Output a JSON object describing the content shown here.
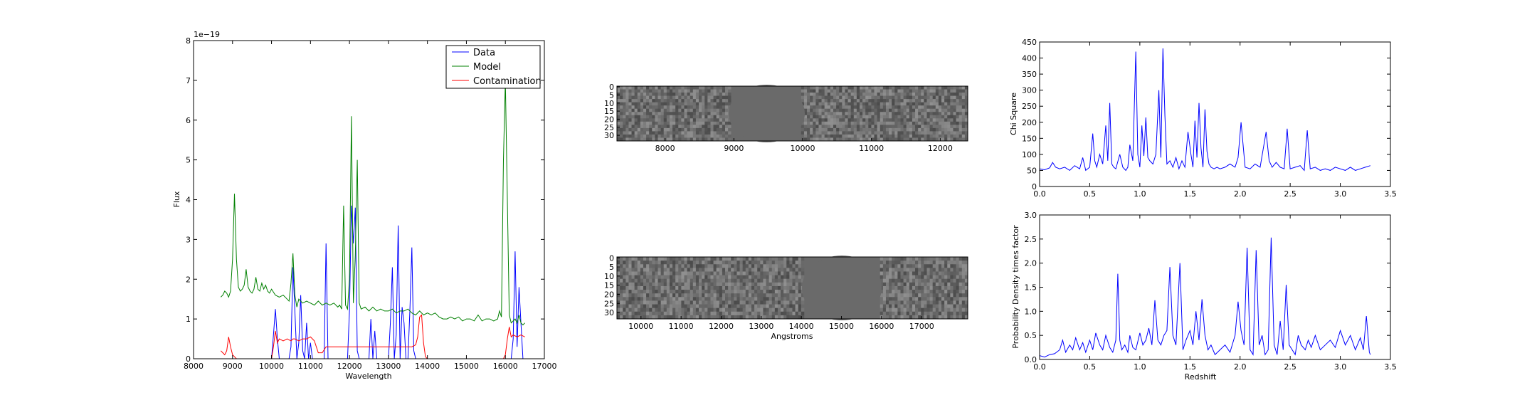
{
  "colors": {
    "data": "#0000ff",
    "model": "#008000",
    "contamination": "#ff0000",
    "image_gap": "#6a6a6a"
  },
  "chart_data": [
    {
      "type": "line",
      "xlabel": "Wavelength",
      "ylabel": "Flux",
      "y_offset_label": "1e−19",
      "xlim": [
        8000,
        17000
      ],
      "ylim": [
        0,
        8
      ],
      "xticks": [
        8000,
        9000,
        10000,
        11000,
        12000,
        13000,
        14000,
        15000,
        16000,
        17000
      ],
      "yticks": [
        0,
        1,
        2,
        3,
        4,
        5,
        6,
        7,
        8
      ],
      "legend_position": "top-right",
      "series": [
        {
          "name": "Data",
          "color": "#0000ff",
          "x": [
            8700,
            10000,
            10050,
            10100,
            10150,
            10200,
            10450,
            10500,
            10550,
            10600,
            10650,
            10700,
            10750,
            10800,
            10850,
            10900,
            10950,
            11000,
            11050,
            11350,
            11400,
            11450,
            11950,
            12000,
            12050,
            12100,
            12150,
            12200,
            12250,
            12500,
            12550,
            12600,
            12650,
            12700,
            12750,
            13000,
            13050,
            13100,
            13150,
            13200,
            13250,
            13300,
            13350,
            13400,
            13450,
            13500,
            13550,
            13600,
            13650,
            13700,
            13750,
            13800,
            13850,
            16150,
            16200,
            16250,
            16300,
            16350,
            16400,
            16450,
            16500
          ],
          "y": [
            0,
            0,
            0.6,
            1.25,
            0.5,
            0,
            0,
            0.3,
            2.3,
            1.2,
            0,
            0.4,
            1.6,
            0.2,
            0,
            0.9,
            0,
            0.4,
            0,
            0,
            2.9,
            0,
            0,
            1.2,
            3.85,
            2.9,
            3.8,
            0.2,
            0,
            0,
            1.0,
            0,
            0.7,
            0,
            0,
            0,
            0.9,
            2.3,
            0,
            0.6,
            3.35,
            0,
            1.3,
            0.9,
            0,
            0,
            1.2,
            2.8,
            0.2,
            0,
            0,
            0,
            0,
            0,
            0.5,
            2.7,
            0.3,
            1.8,
            0.9,
            0,
            0
          ]
        },
        {
          "name": "Model",
          "color": "#008000",
          "x": [
            8700,
            8750,
            8800,
            8850,
            8900,
            8950,
            9000,
            9050,
            9100,
            9150,
            9200,
            9250,
            9300,
            9350,
            9400,
            9450,
            9500,
            9550,
            9600,
            9650,
            9700,
            9750,
            9800,
            9850,
            9900,
            9950,
            10000,
            10100,
            10200,
            10300,
            10400,
            10450,
            10500,
            10550,
            10600,
            10650,
            10700,
            10800,
            10900,
            11000,
            11100,
            11200,
            11300,
            11400,
            11500,
            11600,
            11700,
            11750,
            11800,
            11850,
            11900,
            11950,
            12000,
            12050,
            12100,
            12150,
            12200,
            12250,
            12300,
            12400,
            12500,
            12600,
            12700,
            12800,
            12900,
            13000,
            13100,
            13200,
            13300,
            13400,
            13500,
            13600,
            13700,
            13800,
            13900,
            14000,
            14100,
            14200,
            14300,
            14400,
            14500,
            14600,
            14700,
            14800,
            14900,
            15000,
            15100,
            15200,
            15300,
            15400,
            15500,
            15600,
            15700,
            15800,
            15850,
            15900,
            15950,
            16000,
            16050,
            16100,
            16150,
            16200,
            16250,
            16300,
            16350,
            16400,
            16450,
            16500
          ],
          "y": [
            1.55,
            1.6,
            1.7,
            1.65,
            1.55,
            1.7,
            2.5,
            4.15,
            2.5,
            1.8,
            1.7,
            1.75,
            1.85,
            2.25,
            1.8,
            1.7,
            1.65,
            1.75,
            2.05,
            1.75,
            1.7,
            1.9,
            1.75,
            1.85,
            1.7,
            1.65,
            1.75,
            1.6,
            1.55,
            1.6,
            1.5,
            1.45,
            1.9,
            2.65,
            1.6,
            1.3,
            1.5,
            1.4,
            1.45,
            1.4,
            1.35,
            1.45,
            1.35,
            1.4,
            1.35,
            1.4,
            1.3,
            1.35,
            1.25,
            3.85,
            1.35,
            1.25,
            2.0,
            6.1,
            1.4,
            2.6,
            5.0,
            1.4,
            1.25,
            1.3,
            1.2,
            1.3,
            1.2,
            1.25,
            1.2,
            1.2,
            1.25,
            1.15,
            1.2,
            1.2,
            1.25,
            1.15,
            1.1,
            1.2,
            1.1,
            1.15,
            1.1,
            1.15,
            1.05,
            1.0,
            1.0,
            1.05,
            1.0,
            1.05,
            0.95,
            1.0,
            1.0,
            0.95,
            1.1,
            0.95,
            1.0,
            1.0,
            0.95,
            1.0,
            1.2,
            1.05,
            5.0,
            7.0,
            4.0,
            1.1,
            0.9,
            0.95,
            1.0,
            0.9,
            1.1,
            0.9,
            0.85,
            0.9
          ]
        },
        {
          "name": "Contamination",
          "color": "#ff0000",
          "x": [
            8700,
            8750,
            8800,
            8850,
            8900,
            8950,
            9000,
            9050,
            9100,
            9500,
            9950,
            10000,
            10050,
            10100,
            10150,
            10200,
            10300,
            10400,
            10500,
            10550,
            10600,
            10700,
            10800,
            10900,
            11000,
            11100,
            11200,
            11300,
            11400,
            11500,
            11600,
            11700,
            11800,
            11900,
            12000,
            12100,
            12200,
            12300,
            12400,
            12500,
            12600,
            12700,
            12800,
            12900,
            13000,
            13100,
            13200,
            13300,
            13400,
            13500,
            13600,
            13700,
            13750,
            13800,
            13850,
            13900,
            13950,
            14000,
            14100,
            14500,
            15000,
            15500,
            15900,
            15950,
            16000,
            16050,
            16100,
            16150,
            16200,
            16300,
            16400,
            16500
          ],
          "y": [
            0.2,
            0.15,
            0.1,
            0.2,
            0.55,
            0.3,
            0.1,
            0.05,
            0,
            0,
            0,
            0,
            0.3,
            0.7,
            0.4,
            0.5,
            0.45,
            0.5,
            0.45,
            0.5,
            0.5,
            0.45,
            0.5,
            0.5,
            0.55,
            0.45,
            0.15,
            0.15,
            0.3,
            0.3,
            0.3,
            0.3,
            0.3,
            0.3,
            0.3,
            0.3,
            0.3,
            0.3,
            0.3,
            0.3,
            0.3,
            0.3,
            0.3,
            0.3,
            0.3,
            0.3,
            0.3,
            0.3,
            0.3,
            0.3,
            0.3,
            0.35,
            0.55,
            1.05,
            1.1,
            0.4,
            0.05,
            0,
            0,
            0,
            0,
            0,
            0,
            0,
            0.1,
            0.5,
            0.8,
            0.55,
            0.6,
            0.55,
            0.6,
            0.55
          ]
        }
      ]
    },
    {
      "type": "heatmap",
      "xlim": [
        7300,
        12400
      ],
      "xticks": [
        8000,
        9000,
        10000,
        11000,
        12000
      ],
      "yticks": [
        0,
        5,
        10,
        15,
        20,
        25,
        30
      ],
      "ylim": [
        0,
        34
      ],
      "xlabel": ""
    },
    {
      "type": "heatmap",
      "xlim": [
        9400,
        18150
      ],
      "xticks": [
        10000,
        11000,
        12000,
        13000,
        14000,
        15000,
        16000,
        17000
      ],
      "yticks": [
        0,
        5,
        10,
        15,
        20,
        25,
        30
      ],
      "ylim": [
        0,
        34
      ],
      "xlabel": "Angstroms"
    },
    {
      "type": "line",
      "xlabel": "",
      "ylabel": "Chi Square",
      "xlim": [
        0.0,
        3.5
      ],
      "ylim": [
        0,
        450
      ],
      "xticks": [
        0.0,
        0.5,
        1.0,
        1.5,
        2.0,
        2.5,
        3.0,
        3.5
      ],
      "xtick_labels": [
        "0.0",
        "0.5",
        "1.0",
        "1.5",
        "2.0",
        "2.5",
        "3.0",
        "3.5"
      ],
      "yticks": [
        0,
        50,
        100,
        150,
        200,
        250,
        300,
        350,
        400,
        450
      ],
      "series": [
        {
          "color": "#0000ff",
          "x": [
            0.0,
            0.05,
            0.1,
            0.13,
            0.16,
            0.2,
            0.25,
            0.3,
            0.35,
            0.4,
            0.43,
            0.46,
            0.5,
            0.53,
            0.55,
            0.57,
            0.6,
            0.63,
            0.66,
            0.68,
            0.7,
            0.72,
            0.74,
            0.76,
            0.8,
            0.83,
            0.86,
            0.88,
            0.9,
            0.93,
            0.96,
            0.98,
            1.0,
            1.02,
            1.04,
            1.06,
            1.08,
            1.1,
            1.13,
            1.16,
            1.19,
            1.21,
            1.23,
            1.25,
            1.27,
            1.3,
            1.33,
            1.36,
            1.39,
            1.42,
            1.45,
            1.48,
            1.51,
            1.53,
            1.55,
            1.57,
            1.59,
            1.61,
            1.63,
            1.65,
            1.67,
            1.69,
            1.71,
            1.74,
            1.77,
            1.8,
            1.85,
            1.9,
            1.95,
            1.98,
            2.01,
            2.05,
            2.1,
            2.15,
            2.2,
            2.23,
            2.26,
            2.29,
            2.32,
            2.36,
            2.4,
            2.44,
            2.47,
            2.5,
            2.55,
            2.6,
            2.64,
            2.67,
            2.7,
            2.75,
            2.8,
            2.85,
            2.9,
            2.95,
            3.0,
            3.05,
            3.1,
            3.15,
            3.2,
            3.25,
            3.3
          ],
          "y": [
            55,
            52,
            58,
            75,
            60,
            55,
            60,
            50,
            65,
            55,
            90,
            50,
            60,
            165,
            80,
            60,
            100,
            70,
            190,
            80,
            260,
            70,
            60,
            55,
            100,
            60,
            50,
            60,
            130,
            80,
            420,
            100,
            60,
            190,
            95,
            215,
            90,
            80,
            70,
            100,
            300,
            90,
            430,
            220,
            70,
            80,
            60,
            90,
            55,
            80,
            60,
            170,
            100,
            60,
            205,
            90,
            260,
            120,
            60,
            240,
            110,
            70,
            60,
            55,
            60,
            55,
            60,
            70,
            60,
            90,
            200,
            60,
            55,
            70,
            60,
            115,
            170,
            80,
            60,
            75,
            60,
            55,
            180,
            55,
            60,
            65,
            50,
            175,
            55,
            60,
            50,
            55,
            50,
            60,
            55,
            50,
            60,
            50,
            55,
            60,
            65
          ]
        }
      ]
    },
    {
      "type": "line",
      "xlabel": "Redshift",
      "ylabel": "Probability Density times factor",
      "xlim": [
        0.0,
        3.5
      ],
      "ylim": [
        0,
        3.0
      ],
      "xticks": [
        0.0,
        0.5,
        1.0,
        1.5,
        2.0,
        2.5,
        3.0,
        3.5
      ],
      "xtick_labels": [
        "0.0",
        "0.5",
        "1.0",
        "1.5",
        "2.0",
        "2.5",
        "3.0",
        "3.5"
      ],
      "yticks": [
        0.0,
        0.5,
        1.0,
        1.5,
        2.0,
        2.5,
        3.0
      ],
      "ytick_labels": [
        "0.0",
        "0.5",
        "1.0",
        "1.5",
        "2.0",
        "2.5",
        "3.0"
      ],
      "series": [
        {
          "color": "#0000ff",
          "x": [
            0.0,
            0.05,
            0.1,
            0.15,
            0.2,
            0.23,
            0.26,
            0.3,
            0.33,
            0.36,
            0.4,
            0.43,
            0.46,
            0.5,
            0.53,
            0.56,
            0.6,
            0.63,
            0.66,
            0.7,
            0.73,
            0.76,
            0.78,
            0.8,
            0.82,
            0.85,
            0.88,
            0.9,
            0.93,
            0.96,
            1.0,
            1.03,
            1.06,
            1.09,
            1.12,
            1.15,
            1.18,
            1.21,
            1.24,
            1.27,
            1.3,
            1.33,
            1.36,
            1.4,
            1.43,
            1.46,
            1.5,
            1.53,
            1.56,
            1.59,
            1.62,
            1.65,
            1.68,
            1.71,
            1.75,
            1.8,
            1.85,
            1.9,
            1.95,
            1.98,
            2.01,
            2.04,
            2.07,
            2.1,
            2.13,
            2.16,
            2.19,
            2.22,
            2.25,
            2.28,
            2.31,
            2.34,
            2.37,
            2.4,
            2.43,
            2.46,
            2.49,
            2.52,
            2.55,
            2.58,
            2.61,
            2.65,
            2.68,
            2.71,
            2.75,
            2.8,
            2.85,
            2.9,
            2.95,
            3.0,
            3.05,
            3.1,
            3.15,
            3.2,
            3.23,
            3.26,
            3.29,
            3.3
          ],
          "y": [
            0.08,
            0.05,
            0.1,
            0.12,
            0.2,
            0.4,
            0.15,
            0.3,
            0.2,
            0.45,
            0.2,
            0.35,
            0.15,
            0.4,
            0.2,
            0.55,
            0.3,
            0.2,
            0.5,
            0.25,
            0.15,
            0.4,
            1.78,
            0.4,
            0.2,
            0.3,
            0.15,
            0.5,
            0.25,
            0.2,
            0.55,
            0.3,
            0.4,
            0.65,
            0.3,
            1.23,
            0.4,
            0.3,
            0.5,
            0.6,
            1.92,
            0.5,
            0.3,
            2.0,
            0.2,
            0.4,
            0.6,
            0.3,
            1.0,
            0.4,
            1.25,
            0.5,
            0.2,
            0.3,
            0.1,
            0.2,
            0.3,
            0.15,
            0.5,
            1.2,
            0.6,
            0.3,
            2.32,
            0.2,
            0.1,
            2.27,
            0.3,
            0.5,
            0.1,
            0.2,
            2.53,
            0.3,
            0.1,
            0.8,
            0.2,
            1.55,
            0.3,
            0.2,
            0.1,
            0.5,
            0.3,
            0.2,
            0.4,
            0.25,
            0.5,
            0.2,
            0.3,
            0.4,
            0.25,
            0.6,
            0.3,
            0.5,
            0.2,
            0.45,
            0.2,
            0.9,
            0.15,
            0.1
          ]
        }
      ]
    }
  ]
}
